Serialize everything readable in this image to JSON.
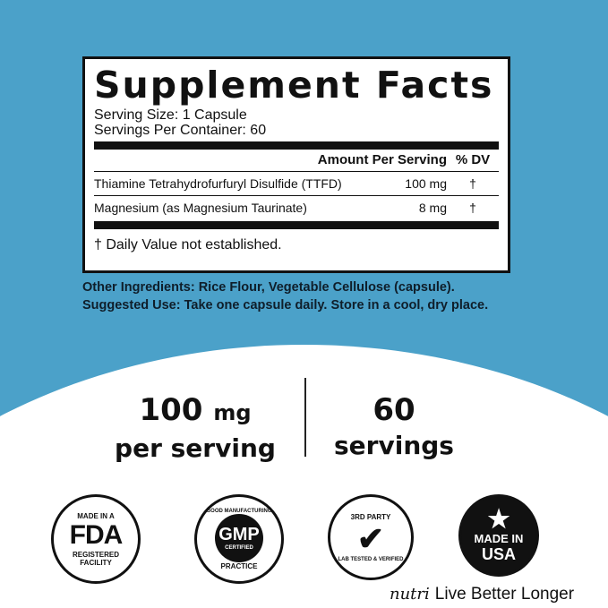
{
  "label": {
    "title": "Supplement Facts",
    "serving_size": "Serving Size: 1 Capsule",
    "servings_per_container": "Servings Per Container: 60",
    "header_amount": "Amount Per Serving",
    "header_dv": "% DV",
    "rows": [
      {
        "name": "Thiamine Tetrahydrofurfuryl Disulfide (TTFD)",
        "amount": "100 mg",
        "dv": "†"
      },
      {
        "name": "Magnesium (as Magnesium Taurinate)",
        "amount": "8 mg",
        "dv": "†"
      }
    ],
    "footnote": "† Daily Value not established."
  },
  "other_ingredients": "Other Ingredients: Rice Flour, Vegetable Cellulose (capsule).",
  "suggested_use": "Suggested Use: Take one capsule daily. Store in a cool, dry place.",
  "stats": [
    {
      "value": "100",
      "unit": "mg",
      "label": "per serving"
    },
    {
      "value": "60",
      "label": "servings"
    }
  ],
  "badges": [
    {
      "top": "MADE IN A",
      "main": "FDA",
      "bottom": "REGISTERED FACILITY"
    },
    {
      "top": "GOOD MANUFACTURING",
      "main": "GMP",
      "sub": "CERTIFIED",
      "bottom": "PRACTICE"
    },
    {
      "top": "3RD PARTY",
      "main": "✔",
      "bottom": "LAB TESTED & VERIFIED"
    },
    {
      "top": "★",
      "main": "MADE IN",
      "bottom": "USA"
    }
  ],
  "brand": {
    "logo": "nutri",
    "tagline": "Live Better Longer"
  },
  "colors": {
    "background": "#4ba1c9"
  }
}
